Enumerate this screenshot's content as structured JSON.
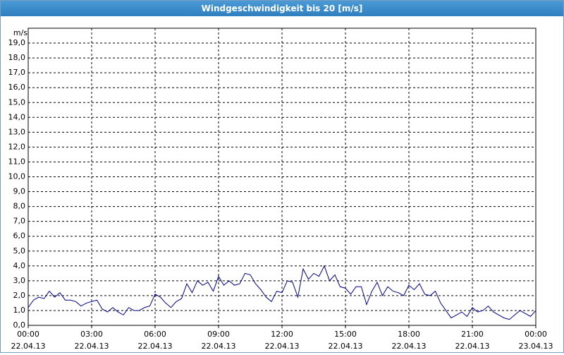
{
  "chart_data": {
    "type": "line",
    "title": "Windgeschwindigkeit bis 20 [m/s]",
    "y_unit": "m/s",
    "x": [
      0,
      0.25,
      0.5,
      0.75,
      1,
      1.25,
      1.5,
      1.75,
      2,
      2.25,
      2.5,
      2.75,
      3,
      3.25,
      3.5,
      3.75,
      4,
      4.25,
      4.5,
      4.75,
      5,
      5.25,
      5.5,
      5.75,
      6,
      6.25,
      6.5,
      6.75,
      7,
      7.25,
      7.5,
      7.75,
      8,
      8.25,
      8.5,
      8.75,
      9,
      9.25,
      9.5,
      9.75,
      10,
      10.25,
      10.5,
      10.75,
      11,
      11.25,
      11.5,
      11.75,
      12,
      12.25,
      12.5,
      12.75,
      13,
      13.25,
      13.5,
      13.75,
      14,
      14.25,
      14.5,
      14.75,
      15,
      15.25,
      15.5,
      15.75,
      16,
      16.25,
      16.5,
      16.75,
      17,
      17.25,
      17.5,
      17.75,
      18,
      18.25,
      18.5,
      18.75,
      19,
      19.25,
      19.5,
      19.75,
      20,
      20.25,
      20.5,
      20.75,
      21,
      21.25,
      21.5,
      21.75,
      22,
      22.25,
      22.5,
      22.75,
      23,
      23.25,
      23.5,
      23.75,
      24
    ],
    "series": [
      {
        "name": "Windgeschwindigkeit",
        "color": "#00008b",
        "values": [
          1.2,
          1.7,
          1.9,
          1.8,
          2.3,
          1.9,
          2.2,
          1.7,
          1.7,
          1.6,
          1.3,
          1.5,
          1.6,
          1.7,
          1.1,
          0.9,
          1.2,
          0.9,
          0.7,
          1.2,
          1.0,
          1.0,
          1.2,
          1.3,
          2.1,
          1.9,
          1.5,
          1.2,
          1.6,
          1.8,
          2.8,
          2.2,
          3.0,
          2.7,
          2.9,
          2.3,
          3.3,
          2.7,
          3.0,
          2.7,
          2.8,
          3.5,
          3.4,
          2.8,
          2.4,
          1.9,
          1.6,
          2.3,
          2.2,
          3.0,
          2.9,
          1.9,
          3.8,
          3.1,
          3.5,
          3.3,
          4.0,
          3.0,
          3.4,
          2.6,
          2.5,
          2.1,
          2.6,
          2.6,
          1.4,
          2.3,
          2.9,
          2.0,
          2.6,
          2.3,
          2.2,
          2.0,
          2.7,
          2.4,
          2.8,
          2.1,
          2.0,
          2.3,
          1.5,
          1.0,
          0.5,
          0.7,
          0.9,
          0.6,
          1.2,
          0.9,
          1.0,
          1.3,
          0.9,
          0.7,
          0.5,
          0.4,
          0.7,
          1.0,
          0.8,
          0.6,
          1.0
        ]
      }
    ],
    "xlim": [
      0,
      24
    ],
    "xticks": [
      {
        "value": 0,
        "label": [
          "00:00",
          "22.04.13"
        ]
      },
      {
        "value": 3,
        "label": [
          "03:00",
          "22.04.13"
        ]
      },
      {
        "value": 6,
        "label": [
          "06:00",
          "22.04.13"
        ]
      },
      {
        "value": 9,
        "label": [
          "09:00",
          "22.04.13"
        ]
      },
      {
        "value": 12,
        "label": [
          "12:00",
          "22.04.13"
        ]
      },
      {
        "value": 15,
        "label": [
          "15:00",
          "22.04.13"
        ]
      },
      {
        "value": 18,
        "label": [
          "18:00",
          "22.04.13"
        ]
      },
      {
        "value": 21,
        "label": [
          "21:00",
          "22.04.13"
        ]
      },
      {
        "value": 24,
        "label": [
          "00:00",
          "23.04.13"
        ]
      }
    ],
    "ylim": [
      0,
      20
    ],
    "yticks": [
      {
        "value": 0,
        "label": "0,0"
      },
      {
        "value": 1,
        "label": "1,0"
      },
      {
        "value": 2,
        "label": "2,0"
      },
      {
        "value": 3,
        "label": "3,0"
      },
      {
        "value": 4,
        "label": "4,0"
      },
      {
        "value": 5,
        "label": "5,0"
      },
      {
        "value": 6,
        "label": "6,0"
      },
      {
        "value": 7,
        "label": "7,0"
      },
      {
        "value": 8,
        "label": "8,0"
      },
      {
        "value": 9,
        "label": "9,0"
      },
      {
        "value": 10,
        "label": "10,0"
      },
      {
        "value": 11,
        "label": "11,0"
      },
      {
        "value": 12,
        "label": "12,0"
      },
      {
        "value": 13,
        "label": "13,0"
      },
      {
        "value": 14,
        "label": "14,0"
      },
      {
        "value": 15,
        "label": "15,0"
      },
      {
        "value": 16,
        "label": "16,0"
      },
      {
        "value": 17,
        "label": "17,0"
      },
      {
        "value": 18,
        "label": "18,0"
      },
      {
        "value": 19,
        "label": "19,0"
      }
    ],
    "grid": true
  }
}
